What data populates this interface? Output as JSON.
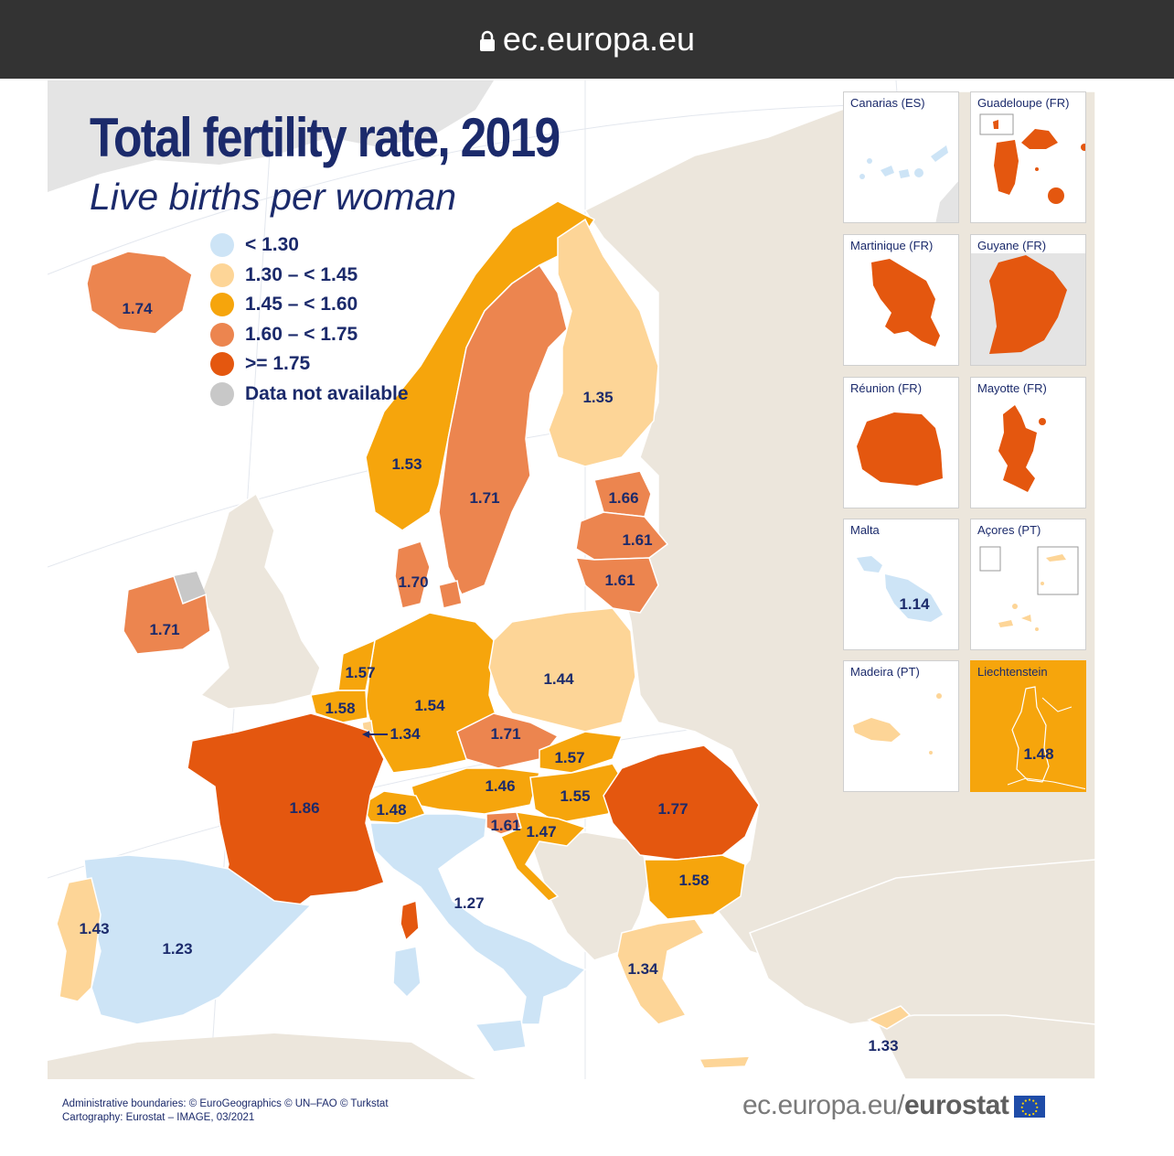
{
  "browser": {
    "url": "ec.europa.eu"
  },
  "map": {
    "title": "Total fertility rate, 2019",
    "subtitle": "Live births per woman",
    "legend": [
      {
        "label": "< 1.30",
        "color": "#cde4f6"
      },
      {
        "label": "1.30 – < 1.45",
        "color": "#fdd597"
      },
      {
        "label": "1.45 – < 1.60",
        "color": "#f6a50c"
      },
      {
        "label": "1.60 – < 1.75",
        "color": "#ec854f"
      },
      {
        "label": ">= 1.75",
        "color": "#e4570f"
      },
      {
        "label": "Data not available",
        "color": "#c8c8c8"
      }
    ],
    "country_values": {
      "iceland": "1.74",
      "ireland": "1.71",
      "norway": "1.53",
      "sweden": "1.71",
      "finland": "1.35",
      "estonia": "1.66",
      "latvia": "1.61",
      "lithuania": "1.61",
      "denmark": "1.70",
      "netherlands": "1.57",
      "belgium": "1.58",
      "luxembourg": "1.34",
      "germany": "1.54",
      "poland": "1.44",
      "czechia": "1.71",
      "slovakia": "1.57",
      "austria": "1.46",
      "hungary": "1.55",
      "switzerland": "1.48",
      "slovenia": "1.61",
      "croatia": "1.47",
      "romania": "1.77",
      "bulgaria": "1.58",
      "france": "1.86",
      "spain": "1.23",
      "portugal": "1.43",
      "italy": "1.27",
      "greece": "1.34",
      "cyprus": "1.33"
    },
    "insets": [
      {
        "name": "Canarias (ES)"
      },
      {
        "name": "Guadeloupe (FR)"
      },
      {
        "name": "Martinique (FR)"
      },
      {
        "name": "Guyane (FR)"
      },
      {
        "name": "Réunion (FR)"
      },
      {
        "name": "Mayotte (FR)"
      },
      {
        "name": "Malta",
        "value": "1.14"
      },
      {
        "name": "Açores (PT)"
      },
      {
        "name": "Madeira (PT)"
      },
      {
        "name": "Liechtenstein",
        "value": "1.48"
      }
    ]
  },
  "footer": {
    "credit_line1": "Administrative boundaries: © EuroGeographics © UN–FAO © Turkstat",
    "credit_line2": "Cartography: Eurostat – IMAGE, 03/2021",
    "brand_prefix": "ec.europa.eu/",
    "brand_name": "eurostat"
  }
}
